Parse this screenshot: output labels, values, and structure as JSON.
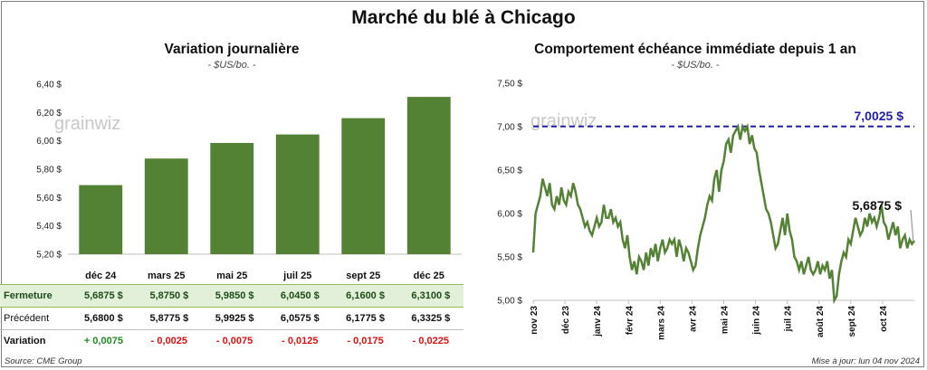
{
  "title": "Marché du blé à Chicago",
  "left_panel": {
    "title": "Variation journalière",
    "subtitle": "- $US/bo. -",
    "watermark": "grainwiz",
    "table": {
      "rows": [
        {
          "label": "Fermeture",
          "values": [
            "5,6875  $",
            "5,8750  $",
            "5,9850  $",
            "6,0450  $",
            "6,1600  $",
            "6,3100  $"
          ]
        },
        {
          "label": "Précédent",
          "values": [
            "5,6800  $",
            "5,8775  $",
            "5,9925  $",
            "6,0575  $",
            "6,1775  $",
            "6,3325  $"
          ]
        },
        {
          "label": "Variation",
          "values": [
            "+ 0,0075",
            "- 0,0025",
            "- 0,0075",
            "- 0,0125",
            "- 0,0175",
            "- 0,0225"
          ]
        }
      ]
    }
  },
  "right_panel": {
    "title": "Comportement  échéance immédiate depuis 1 an",
    "subtitle": "- $US/bo. -",
    "watermark": "grainwiz",
    "max_label": "7,0025 $",
    "last_label": "5,6875 $"
  },
  "footer": {
    "source": "Source: CME Group",
    "updated": "Mise à jour: lun 04 nov 2024"
  },
  "colors": {
    "bar": "#548235",
    "line": "#548235",
    "max_line": "#1f1fa8",
    "positive": "#1e8a1e",
    "negative": "#e01010"
  },
  "chart_data": [
    {
      "type": "bar",
      "categories": [
        "déc 24",
        "mars 25",
        "mai 25",
        "juil 25",
        "sept 25",
        "déc 25"
      ],
      "values": [
        5.6875,
        5.875,
        5.985,
        6.045,
        6.16,
        6.31
      ],
      "ylim": [
        5.2,
        6.4
      ],
      "yticks": [
        "5,20 $",
        "5,40 $",
        "5,60 $",
        "5,80 $",
        "6,00 $",
        "6,20 $",
        "6,40 $"
      ],
      "grid": false
    },
    {
      "type": "line",
      "xticks": [
        "nov 23",
        "déc 23",
        "janv 24",
        "févr 24",
        "mars 24",
        "avr 24",
        "mai 24",
        "juin 24",
        "juil 24",
        "août 24",
        "sept 24",
        "oct 24"
      ],
      "yticks": [
        "5,00 $",
        "5,50 $",
        "6,00 $",
        "6,50 $",
        "7,00 $",
        "7,50 $"
      ],
      "ylim": [
        5.0,
        7.5
      ],
      "reference_line": 7.0025,
      "last_value": 5.6875,
      "grid": false,
      "values": [
        5.55,
        6.0,
        6.1,
        6.2,
        6.4,
        6.3,
        6.2,
        6.35,
        6.1,
        6.05,
        6.2,
        6.1,
        6.3,
        6.15,
        6.1,
        6.25,
        6.2,
        6.35,
        6.25,
        6.1,
        6.05,
        5.95,
        5.85,
        5.9,
        5.8,
        5.75,
        5.85,
        5.95,
        5.85,
        5.9,
        6.1,
        5.95,
        5.95,
        6.05,
        5.9,
        5.95,
        5.85,
        5.9,
        5.7,
        5.6,
        5.75,
        5.5,
        5.35,
        5.45,
        5.3,
        5.5,
        5.45,
        5.35,
        5.55,
        5.4,
        5.6,
        5.5,
        5.65,
        5.45,
        5.6,
        5.7,
        5.55,
        5.6,
        5.7,
        5.65,
        5.7,
        5.5,
        5.7,
        5.6,
        5.45,
        5.6,
        5.55,
        5.45,
        5.35,
        5.4,
        5.6,
        5.75,
        5.85,
        5.95,
        6.1,
        6.2,
        6.15,
        6.4,
        6.5,
        6.25,
        6.5,
        6.6,
        6.8,
        6.85,
        6.7,
        6.9,
        6.95,
        7.0,
        6.85,
        7.0025,
        6.95,
        7.0,
        6.8,
        6.9,
        6.75,
        6.7,
        6.5,
        6.35,
        6.2,
        6.05,
        6.0,
        5.9,
        5.75,
        5.6,
        5.65,
        5.8,
        5.95,
        5.75,
        6.0,
        5.8,
        5.7,
        5.5,
        5.45,
        5.35,
        5.45,
        5.3,
        5.4,
        5.5,
        5.35,
        5.3,
        5.35,
        5.45,
        5.3,
        5.4,
        5.35,
        5.45,
        5.25,
        5.35,
        5.0,
        5.05,
        5.3,
        5.45,
        5.55,
        5.5,
        5.7,
        5.65,
        5.8,
        5.95,
        5.85,
        5.75,
        5.8,
        5.95,
        5.85,
        6.0,
        5.9,
        5.95,
        5.85,
        5.95,
        6.1,
        5.9,
        5.85,
        5.7,
        5.8,
        5.9,
        5.75,
        5.85,
        5.6,
        5.7,
        5.75,
        5.6,
        5.7,
        5.65,
        5.6875
      ]
    }
  ]
}
